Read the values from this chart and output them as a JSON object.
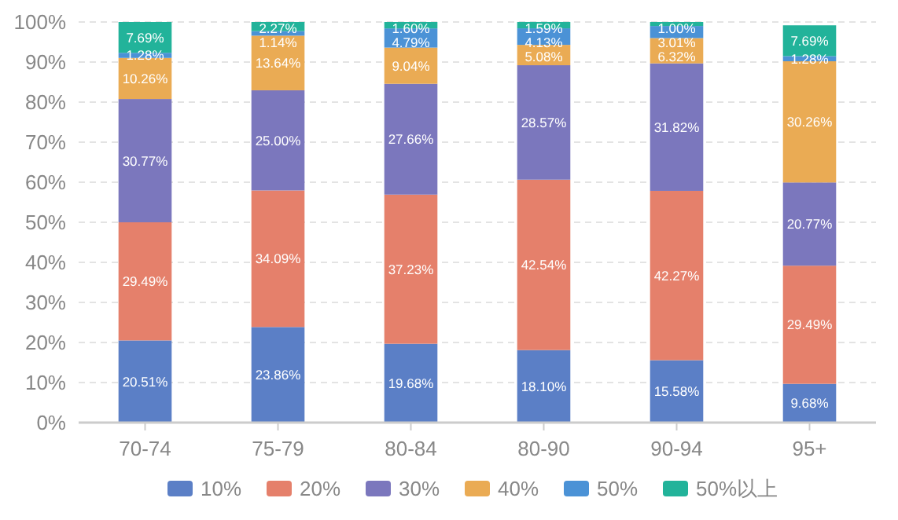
{
  "chart_data": {
    "type": "bar",
    "stacked": true,
    "categories": [
      "70-74",
      "75-79",
      "80-84",
      "80-90",
      "90-94",
      "95+"
    ],
    "series": [
      {
        "name": "10%",
        "color": "#5b7fc6",
        "values": [
          20.51,
          23.86,
          19.68,
          18.1,
          15.58,
          9.68
        ],
        "value_labels": [
          "20.51%",
          "23.86%",
          "19.68%",
          "18.10%",
          "15.58%",
          "9.68%"
        ]
      },
      {
        "name": "20%",
        "color": "#e5806b",
        "values": [
          29.49,
          34.09,
          37.23,
          42.54,
          42.27,
          29.49
        ],
        "value_labels": [
          "29.49%",
          "34.09%",
          "37.23%",
          "42.54%",
          "42.27%",
          "29.49%"
        ]
      },
      {
        "name": "30%",
        "color": "#7b77bd",
        "values": [
          30.77,
          25.0,
          27.66,
          28.57,
          31.82,
          20.77
        ],
        "value_labels": [
          "30.77%",
          "25.00%",
          "27.66%",
          "28.57%",
          "31.82%",
          "20.77%"
        ]
      },
      {
        "name": "40%",
        "color": "#eaab54",
        "values": [
          10.26,
          13.64,
          9.04,
          5.08,
          6.32,
          30.26
        ],
        "value_labels": [
          "10.26%",
          "13.64%",
          "9.04%",
          "5.08%",
          "6.32%",
          "30.26%"
        ]
      },
      {
        "name": "50%",
        "color": "#4b92d6",
        "values": [
          1.28,
          1.14,
          4.79,
          4.13,
          3.01,
          1.28
        ],
        "value_labels": [
          "1.28%",
          "1.14%",
          "4.79%",
          "4.13%",
          "3.01%",
          "1.28%"
        ]
      },
      {
        "name": "50%以上",
        "color": "#22b39a",
        "values": [
          7.69,
          2.27,
          1.6,
          1.59,
          1.0,
          7.69
        ],
        "value_labels": [
          "7.69%",
          "2.27%",
          "1.60%",
          "1.59%",
          "1.00%",
          "7.69%"
        ]
      }
    ],
    "ylim": [
      0,
      100
    ],
    "yticks": [
      {
        "value": 0,
        "label": "0%"
      },
      {
        "value": 10,
        "label": "10%"
      },
      {
        "value": 20,
        "label": "20%"
      },
      {
        "value": 30,
        "label": "30%"
      },
      {
        "value": 40,
        "label": "40%"
      },
      {
        "value": 50,
        "label": "50%"
      },
      {
        "value": 60,
        "label": "60%"
      },
      {
        "value": 70,
        "label": "70%"
      },
      {
        "value": 80,
        "label": "80%"
      },
      {
        "value": 90,
        "label": "90%"
      },
      {
        "value": 100,
        "label": "100%"
      }
    ],
    "grid": "y",
    "legend": "bottom"
  }
}
